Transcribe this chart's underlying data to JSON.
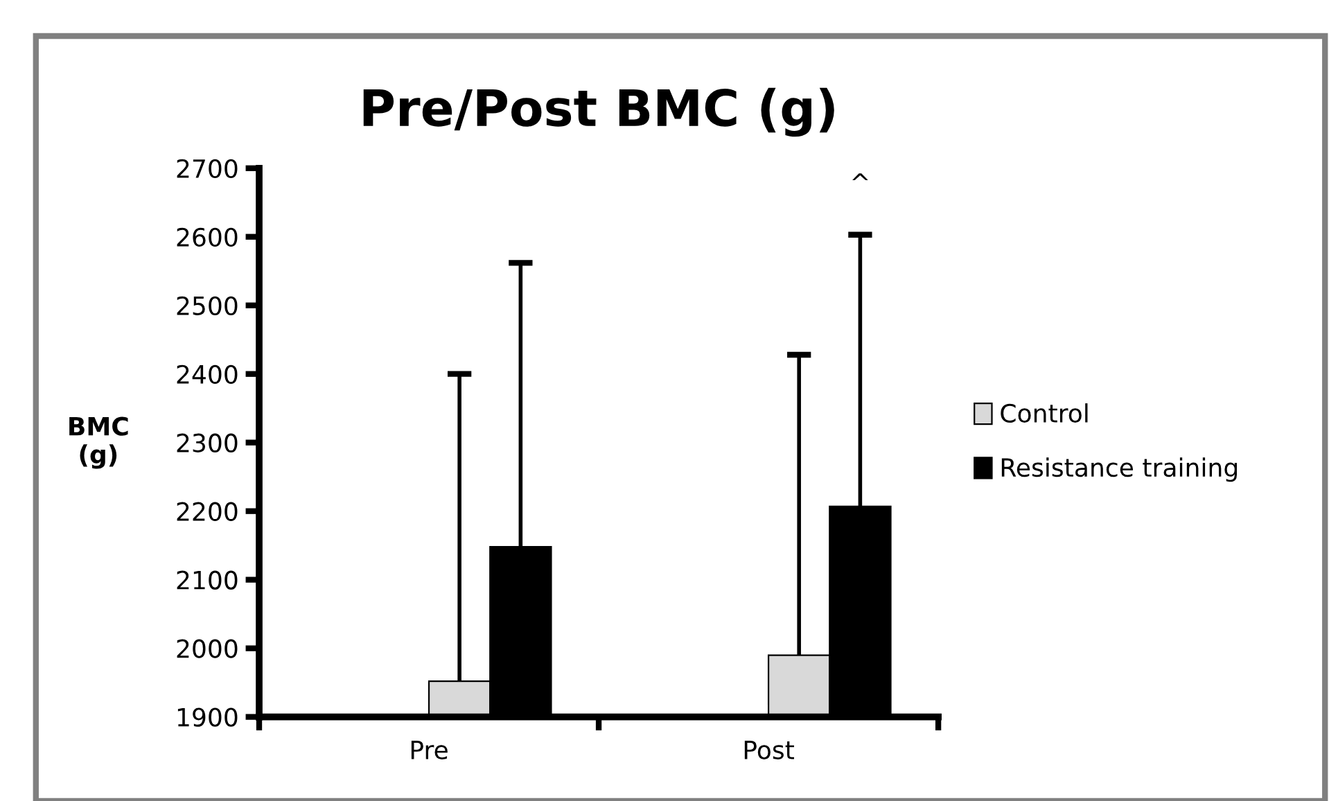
{
  "chart_data": {
    "type": "bar",
    "title": "Pre/Post BMC (g)",
    "ylabel": "BMC\n(g)",
    "categories": [
      "Pre",
      "Post"
    ],
    "series": [
      {
        "name": "Control",
        "color": "#d9d9d9",
        "values": [
          1952,
          1990
        ],
        "errors": [
          [
            1952,
            2400
          ],
          [
            1990,
            2428
          ]
        ]
      },
      {
        "name": "Resistance training",
        "color": "#000000",
        "values": [
          2148,
          2207
        ],
        "errors": [
          [
            2148,
            2562
          ],
          [
            2207,
            2603
          ]
        ]
      }
    ],
    "ylim": [
      1900,
      2700
    ],
    "yticks": [
      1900,
      2000,
      2100,
      2200,
      2300,
      2400,
      2500,
      2600,
      2700
    ],
    "grid": false,
    "legend": "right",
    "annotations": [
      "^"
    ]
  }
}
